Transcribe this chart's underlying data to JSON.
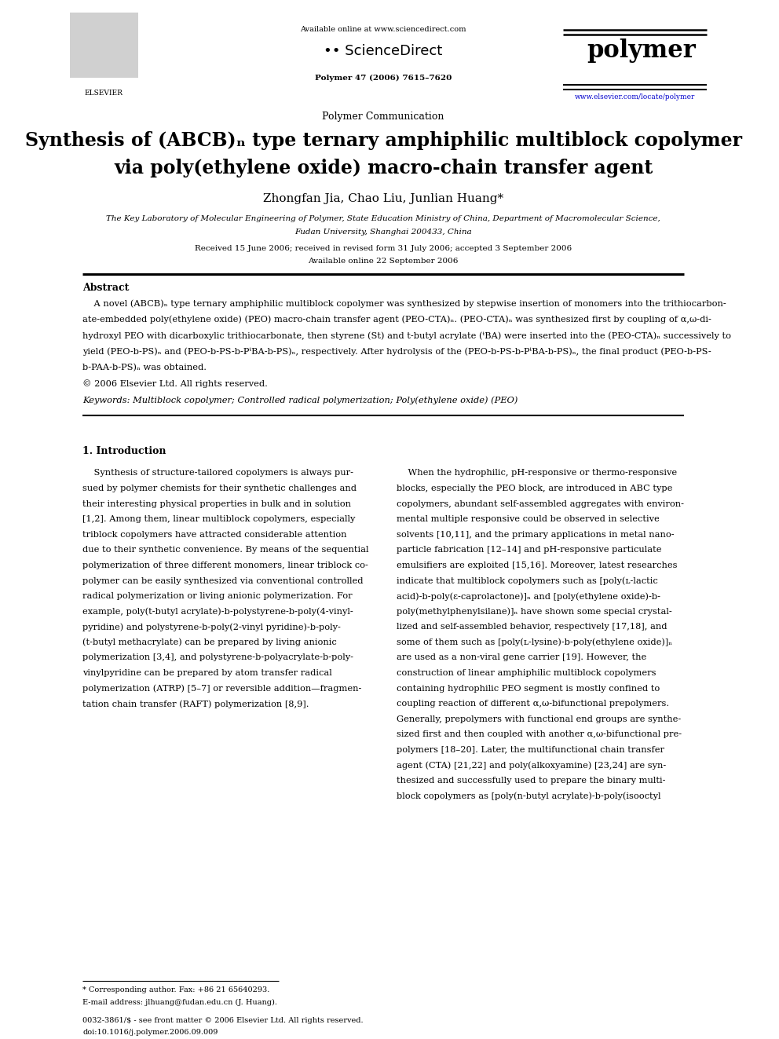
{
  "bg_color": "#ffffff",
  "page_width": 9.92,
  "page_height": 13.23,
  "header": {
    "available_online": "Available online at www.sciencedirect.com",
    "sciencedirect_text": "ScienceDirect",
    "journal_name": "polymer",
    "journal_info": "Polymer 47 (2006) 7615–7620",
    "journal_url": "www.elsevier.com/locate/polymer"
  },
  "section_label": "Polymer Communication",
  "title_line1": "Synthesis of (ABCB)ₙ type ternary amphiphilic multiblock copolymer",
  "title_line2": "via poly(ethylene oxide) macro-chain transfer agent",
  "authors": "Zhongfan Jia, Chao Liu, Junlian Huang*",
  "affiliation1": "The Key Laboratory of Molecular Engineering of Polymer, State Education Ministry of China, Department of Macromolecular Science,",
  "affiliation2": "Fudan University, Shanghai 200433, China",
  "dates": "Received 15 June 2006; received in revised form 31 July 2006; accepted 3 September 2006",
  "available_online2": "Available online 22 September 2006",
  "abstract_title": "Abstract",
  "copyright": "© 2006 Elsevier Ltd. All rights reserved.",
  "keywords": "Keywords: Multiblock copolymer; Controlled radical polymerization; Poly(ethylene oxide) (PEO)",
  "intro_title": "1. Introduction",
  "abstract_lines": [
    "    A novel (ABCB)ₙ type ternary amphiphilic multiblock copolymer was synthesized by stepwise insertion of monomers into the trithiocarbon-",
    "ate-embedded poly(ethylene oxide) (PEO) macro-chain transfer agent (PEO-CTA)ₙ. (PEO-CTA)ₙ was synthesized first by coupling of α,ω-di-",
    "hydroxyl PEO with dicarboxylic trithiocarbonate, then styrene (St) and t-butyl acrylate (ᵗBA) were inserted into the (PEO-CTA)ₙ successively to",
    "yield (PEO-b-PS)ₙ and (PEO-b-PS-b-PᵗBA-b-PS)ₙ, respectively. After hydrolysis of the (PEO-b-PS-b-PᵗBA-b-PS)ₙ, the final product (PEO-b-PS-",
    "b-PAA-b-PS)ₙ was obtained."
  ],
  "intro_col1_lines": [
    "    Synthesis of structure-tailored copolymers is always pur-",
    "sued by polymer chemists for their synthetic challenges and",
    "their interesting physical properties in bulk and in solution",
    "[1,2]. Among them, linear multiblock copolymers, especially",
    "triblock copolymers have attracted considerable attention",
    "due to their synthetic convenience. By means of the sequential",
    "polymerization of three different monomers, linear triblock co-",
    "polymer can be easily synthesized via conventional controlled",
    "radical polymerization or living anionic polymerization. For",
    "example, poly(t-butyl acrylate)-b-polystyrene-b-poly(4-vinyl-",
    "pyridine) and polystyrene-b-poly(2-vinyl pyridine)-b-poly-",
    "(t-butyl methacrylate) can be prepared by living anionic",
    "polymerization [3,4], and polystyrene-b-polyacrylate-b-poly-",
    "vinylpyridine can be prepared by atom transfer radical",
    "polymerization (ATRP) [5–7] or reversible addition—fragmen-",
    "tation chain transfer (RAFT) polymerization [8,9]."
  ],
  "intro_col2_lines": [
    "    When the hydrophilic, pH-responsive or thermo-responsive",
    "blocks, especially the PEO block, are introduced in ABC type",
    "copolymers, abundant self-assembled aggregates with environ-",
    "mental multiple responsive could be observed in selective",
    "solvents [10,11], and the primary applications in metal nano-",
    "particle fabrication [12–14] and pH-responsive particulate",
    "emulsifiers are exploited [15,16]. Moreover, latest researches",
    "indicate that multiblock copolymers such as [poly(ʟ-lactic",
    "acid)-b-poly(ε-caprolactone)]ₙ and [poly(ethylene oxide)-b-",
    "poly(methylphenylsilane)]ₙ have shown some special crystal-",
    "lized and self-assembled behavior, respectively [17,18], and",
    "some of them such as [poly(ʟ-lysine)-b-poly(ethylene oxide)]ₙ",
    "are used as a non-viral gene carrier [19]. However, the",
    "construction of linear amphiphilic multiblock copolymers",
    "containing hydrophilic PEO segment is mostly confined to",
    "coupling reaction of different α,ω-bifunctional prepolymers.",
    "Generally, prepolymers with functional end groups are synthe-",
    "sized first and then coupled with another α,ω-bifunctional pre-",
    "polymers [18–20]. Later, the multifunctional chain transfer",
    "agent (CTA) [21,22] and poly(alkoxyamine) [23,24] are syn-",
    "thesized and successfully used to prepare the binary multi-",
    "block copolymers as [poly(n-butyl acrylate)-b-poly(isooctyl"
  ],
  "footnote_star": "* Corresponding author. Fax: +86 21 65640293.",
  "footnote_email": "E-mail address: jlhuang@fudan.edu.cn (J. Huang).",
  "footer_line1": "0032-3861/$ - see front matter © 2006 Elsevier Ltd. All rights reserved.",
  "footer_line2": "doi:10.1016/j.polymer.2006.09.009"
}
